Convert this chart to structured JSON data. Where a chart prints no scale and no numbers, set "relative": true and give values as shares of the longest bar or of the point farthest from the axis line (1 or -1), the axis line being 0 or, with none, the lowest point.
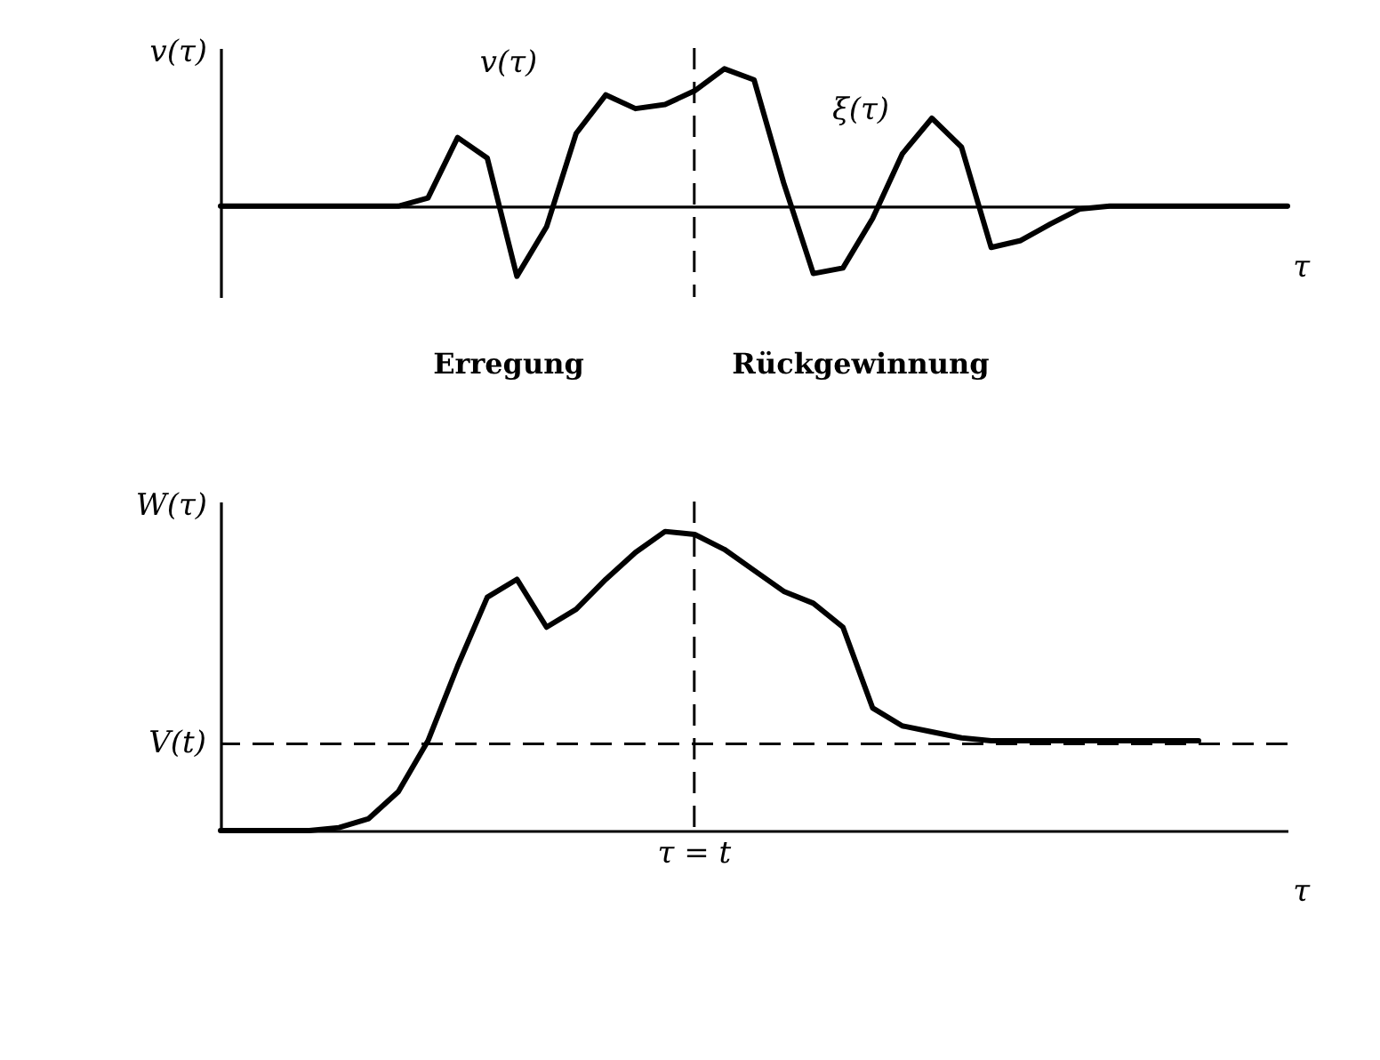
{
  "chart_data": [
    {
      "type": "line",
      "relative": true,
      "ylabel": "v(τ)",
      "xlabel": "τ",
      "line_style": "solid",
      "categories": [
        null,
        null,
        null,
        null,
        null,
        null,
        null,
        null,
        null,
        null,
        null,
        null,
        null,
        null,
        null,
        null,
        null,
        null,
        null,
        null,
        null,
        null,
        null,
        null,
        null,
        null,
        null,
        null,
        null,
        null,
        null,
        null,
        null,
        null,
        null,
        null,
        null
      ],
      "series": [
        {
          "color": "#000000",
          "values": [
            0,
            0,
            0,
            0,
            0,
            0,
            0,
            0.06,
            0.5,
            0.35,
            -0.51,
            -0.15,
            0.53,
            0.81,
            0.71,
            0.74,
            0.84,
            1,
            0.92,
            0.17,
            -0.49,
            -0.45,
            -0.09,
            0.38,
            0.64,
            0.43,
            -0.3,
            -0.25,
            -0.13,
            -0.02,
            0,
            0,
            0,
            0,
            0,
            0,
            0
          ]
        }
      ],
      "annotations": [
        "v(τ)",
        "ξ(τ)",
        "Erregung",
        "Rückgewinnung"
      ]
    },
    {
      "type": "line",
      "relative": true,
      "ylabel": "W(τ)",
      "xlabel": "τ",
      "line_style": "solid",
      "categories": [
        null,
        null,
        null,
        null,
        null,
        null,
        null,
        null,
        null,
        null,
        null,
        null,
        null,
        null,
        null,
        null,
        null,
        null,
        null,
        null,
        null,
        null,
        null,
        null,
        null,
        null,
        null,
        null,
        null,
        null,
        null,
        null,
        null,
        null,
        null,
        null,
        null
      ],
      "series": [
        {
          "color": "#000000",
          "values": [
            0,
            0,
            0,
            0,
            0.01,
            0.04,
            0.13,
            0.3,
            0.55,
            0.78,
            0.84,
            0.68,
            0.74,
            0.84,
            0.93,
            1,
            0.99,
            0.94,
            0.87,
            0.8,
            0.76,
            0.68,
            0.41,
            0.35,
            0.33,
            0.31,
            0.3,
            0.3,
            0.3,
            0.3,
            0.3,
            0.3,
            0.3,
            0.3,
            null,
            null,
            null
          ]
        }
      ],
      "ref_lines": [
        {
          "axis": "y",
          "value": 0.29,
          "label": "V(t)",
          "line_style": "dashed",
          "color": "#000000"
        }
      ],
      "annotations": [
        "τ = t"
      ]
    }
  ]
}
